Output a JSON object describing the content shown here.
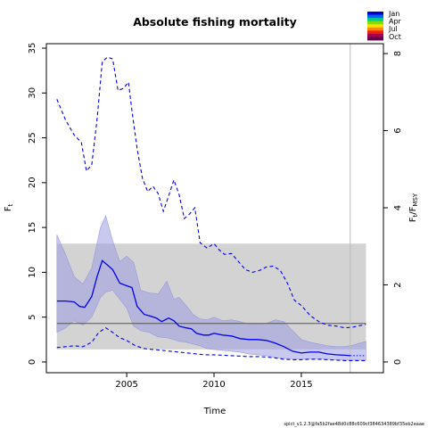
{
  "chart_data": {
    "type": "line",
    "title": "Absolute fishing mortality",
    "xlabel": "Time",
    "ylabel": "F",
    "ylabel_sub": "t",
    "ylabel_right": "F",
    "ylabel_right_sub": "t",
    "ylabel_right_den": "F",
    "ylabel_right_den_sub": "MSY",
    "xlim": [
      2000.4,
      2019.7
    ],
    "ylim": [
      -1.2,
      35.5
    ],
    "ylim_right_ticks": [
      0,
      2,
      4,
      6,
      8
    ],
    "fmsy": 4.3,
    "x_ticks": [
      2005,
      2010,
      2015
    ],
    "y_ticks": [
      0,
      5,
      10,
      15,
      20,
      25,
      30,
      35
    ],
    "vline_x": 2017.8,
    "fmsy_band": {
      "x": [
        2001,
        2018.7
      ],
      "lower": 1.4,
      "upper": 13.2
    },
    "legend": {
      "position": "top-right",
      "labels": [
        "Jan",
        "Apr",
        "Jul",
        "Oct"
      ],
      "colors": [
        "#0000cc",
        "#0066ff",
        "#00cc88",
        "#88dd00",
        "#ffdd00",
        "#ff8800",
        "#ee2200",
        "#aa0055",
        "#660044"
      ]
    },
    "colors": {
      "line": "#0000ee",
      "band": "#d3d3d3",
      "ci": "#9999dd",
      "ci_light": "#ccccff",
      "fmsy_line": "#555555",
      "vline": "#bbbbbb"
    },
    "series": {
      "estimate": {
        "x": [
          2001.0,
          2001.5,
          2002.0,
          2002.3,
          2002.6,
          2003.0,
          2003.3,
          2003.6,
          2003.9,
          2004.2,
          2004.6,
          2005.0,
          2005.3,
          2005.6,
          2006.0,
          2006.4,
          2006.7,
          2007.0,
          2007.4,
          2007.7,
          2008.0,
          2008.4,
          2008.7,
          2009.0,
          2009.4,
          2009.7,
          2010.0,
          2010.5,
          2011.0,
          2011.5,
          2012.0,
          2012.5,
          2013.0,
          2013.5,
          2014.0,
          2014.5,
          2015.0,
          2015.5,
          2016.0,
          2016.5,
          2017.0,
          2017.5,
          2017.8
        ],
        "y": [
          6.8,
          6.8,
          6.7,
          6.2,
          6.1,
          7.3,
          9.5,
          11.3,
          10.8,
          10.3,
          8.8,
          8.5,
          8.3,
          6.2,
          5.3,
          5.1,
          4.9,
          4.5,
          4.9,
          4.6,
          4.0,
          3.8,
          3.7,
          3.2,
          3.0,
          3.0,
          3.2,
          3.0,
          2.9,
          2.6,
          2.5,
          2.5,
          2.4,
          2.1,
          1.7,
          1.2,
          1.0,
          1.1,
          1.1,
          0.9,
          0.8,
          0.75,
          0.7
        ]
      },
      "estimate_pred": {
        "x": [
          2017.8,
          2018.2,
          2018.7
        ],
        "y": [
          0.7,
          0.7,
          0.7
        ]
      },
      "ci": {
        "x": [
          2001.0,
          2001.5,
          2002.0,
          2002.5,
          2003.0,
          2003.5,
          2003.8,
          2004.2,
          2004.6,
          2005.0,
          2005.4,
          2005.8,
          2006.3,
          2006.8,
          2007.3,
          2007.7,
          2008.0,
          2008.4,
          2008.8,
          2009.2,
          2009.6,
          2010.0,
          2010.5,
          2011.0,
          2011.5,
          2012.0,
          2012.5,
          2013.0,
          2013.5,
          2014.0,
          2014.5,
          2015.0,
          2015.5,
          2016.0,
          2016.5,
          2017.0,
          2017.5,
          2018.0,
          2018.7
        ],
        "lower": [
          3.3,
          3.8,
          4.6,
          4.1,
          5.0,
          7.2,
          7.8,
          8.0,
          7.0,
          6.0,
          4.0,
          3.5,
          3.3,
          2.8,
          2.7,
          2.5,
          2.3,
          2.2,
          2.0,
          1.8,
          1.5,
          1.4,
          1.3,
          1.2,
          1.1,
          0.9,
          0.8,
          0.7,
          0.5,
          0.4,
          0.35,
          0.3,
          0.35,
          0.35,
          0.3,
          0.25,
          0.2,
          0.2,
          0.2
        ],
        "upper": [
          14.2,
          12.0,
          9.5,
          8.7,
          10.5,
          15.0,
          16.3,
          13.5,
          11.2,
          11.8,
          11.1,
          8.0,
          7.7,
          7.6,
          9.0,
          7.0,
          7.2,
          6.3,
          5.3,
          4.8,
          4.7,
          5.0,
          4.6,
          4.7,
          4.5,
          4.2,
          4.2,
          4.3,
          4.7,
          4.5,
          3.5,
          2.5,
          2.2,
          2.0,
          1.8,
          1.7,
          1.7,
          1.9,
          2.3
        ]
      },
      "upper_dashed": {
        "x": [
          2001.0,
          2001.5,
          2002.0,
          2002.4,
          2002.7,
          2003.0,
          2003.3,
          2003.6,
          2003.9,
          2004.2,
          2004.5,
          2004.8,
          2005.1,
          2005.3,
          2005.6,
          2005.9,
          2006.2,
          2006.5,
          2006.8,
          2007.1,
          2007.4,
          2007.7,
          2008.0,
          2008.3,
          2008.6,
          2008.9,
          2009.2,
          2009.6,
          2010.0,
          2010.3,
          2010.6,
          2011.0,
          2011.4,
          2011.8,
          2012.2,
          2012.6,
          2013.0,
          2013.4,
          2013.8,
          2014.2,
          2014.6,
          2015.0,
          2015.5,
          2016.0,
          2016.5,
          2017.0,
          2017.5,
          2018.0,
          2018.7
        ],
        "y": [
          29.3,
          27.0,
          25.3,
          24.5,
          21.3,
          22.0,
          27.0,
          33.5,
          34.0,
          33.8,
          30.3,
          30.5,
          31.2,
          28.0,
          23.8,
          20.5,
          19.0,
          19.6,
          18.8,
          16.8,
          18.5,
          20.3,
          18.7,
          16.0,
          16.5,
          17.2,
          13.3,
          12.7,
          13.2,
          12.5,
          12.0,
          12.1,
          11.2,
          10.3,
          10.0,
          10.2,
          10.6,
          10.7,
          10.2,
          8.8,
          6.9,
          6.3,
          5.2,
          4.5,
          4.1,
          4.0,
          3.8,
          3.9,
          4.2
        ]
      },
      "lower_dashed": {
        "x": [
          2001.0,
          2001.5,
          2002.0,
          2002.5,
          2003.0,
          2003.4,
          2003.8,
          2004.2,
          2004.6,
          2005.0,
          2005.5,
          2006.0,
          2006.5,
          2007.0,
          2007.5,
          2008.0,
          2008.5,
          2009.0,
          2009.5,
          2010.0,
          2010.5,
          2011.0,
          2011.5,
          2012.0,
          2012.5,
          2013.0,
          2013.5,
          2014.0,
          2014.5,
          2015.0,
          2015.5,
          2016.0,
          2016.5,
          2017.0,
          2017.5,
          2018.0,
          2018.7
        ],
        "y": [
          1.6,
          1.7,
          1.8,
          1.7,
          2.2,
          3.3,
          3.8,
          3.3,
          2.7,
          2.4,
          1.8,
          1.5,
          1.4,
          1.3,
          1.2,
          1.1,
          1.0,
          0.9,
          0.8,
          0.8,
          0.75,
          0.7,
          0.65,
          0.6,
          0.6,
          0.55,
          0.45,
          0.3,
          0.25,
          0.25,
          0.3,
          0.3,
          0.25,
          0.2,
          0.15,
          0.15,
          0.15
        ]
      }
    },
    "footer": "spict_v1.2.3@fa5b2fae48d0c88c609cf384634389bf35eb2eaae"
  }
}
